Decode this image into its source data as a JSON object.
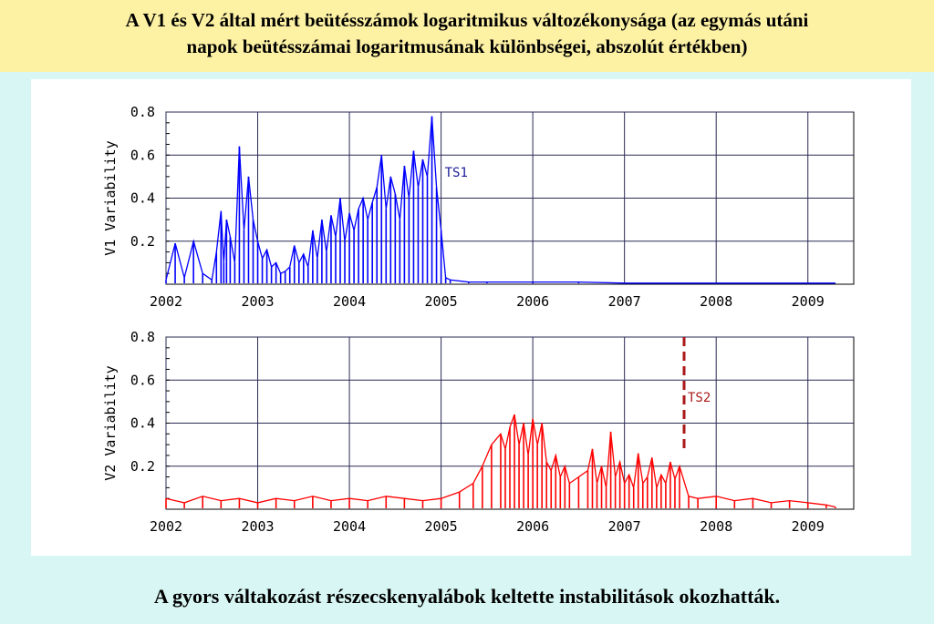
{
  "title": {
    "line1": "A V1 és V2 által mért beütésszámok logaritmikus változékonysága (az egymás utáni",
    "line2": "napok beütésszámai logaritmusának különbségei, abszolút értékben)"
  },
  "caption": "A gyors váltakozást részecskenyalábok keltette instabilitások okozhatták.",
  "colors": {
    "title_bg": "#fdf1a4",
    "page_bg": "#d8f7f4",
    "v1": "#0000ff",
    "v2": "#ff0000",
    "ts1_label": "#1a1a99",
    "ts2_label": "#aa1a1a"
  },
  "chart_data": [
    {
      "type": "line",
      "ylabel": "V1 Variability",
      "xlim": [
        2002,
        2009.5
      ],
      "ylim": [
        0,
        0.8
      ],
      "xticks": [
        "2002",
        "2003",
        "2004",
        "2005",
        "2006",
        "2007",
        "2008",
        "2009"
      ],
      "yticks": [
        "0.2",
        "0.4",
        "0.6",
        "0.8"
      ],
      "grid": true,
      "annotation": {
        "text": "TS1",
        "x": 2005.0,
        "y": 0.52
      },
      "series": [
        {
          "color": "#0000ff",
          "x": [
            2002.0,
            2002.1,
            2002.2,
            2002.3,
            2002.4,
            2002.5,
            2002.55,
            2002.6,
            2002.63,
            2002.66,
            2002.7,
            2002.75,
            2002.8,
            2002.85,
            2002.9,
            2002.95,
            2003.0,
            2003.05,
            2003.1,
            2003.15,
            2003.2,
            2003.25,
            2003.3,
            2003.35,
            2003.4,
            2003.45,
            2003.5,
            2003.55,
            2003.6,
            2003.65,
            2003.7,
            2003.75,
            2003.8,
            2003.85,
            2003.9,
            2003.95,
            2004.0,
            2004.05,
            2004.1,
            2004.15,
            2004.2,
            2004.25,
            2004.3,
            2004.35,
            2004.4,
            2004.45,
            2004.5,
            2004.55,
            2004.6,
            2004.65,
            2004.7,
            2004.75,
            2004.8,
            2004.85,
            2004.9,
            2004.95,
            2005.0,
            2005.05,
            2005.1,
            2005.3,
            2005.5,
            2006.0,
            2006.5,
            2007.0,
            2007.5,
            2008.0,
            2008.5,
            2009.0,
            2009.3
          ],
          "y": [
            0.02,
            0.19,
            0.03,
            0.2,
            0.05,
            0.02,
            0.15,
            0.34,
            0.1,
            0.3,
            0.22,
            0.1,
            0.64,
            0.25,
            0.5,
            0.3,
            0.2,
            0.12,
            0.16,
            0.08,
            0.1,
            0.05,
            0.06,
            0.08,
            0.18,
            0.1,
            0.14,
            0.08,
            0.25,
            0.12,
            0.3,
            0.15,
            0.32,
            0.22,
            0.4,
            0.2,
            0.33,
            0.25,
            0.35,
            0.4,
            0.3,
            0.38,
            0.45,
            0.6,
            0.35,
            0.5,
            0.42,
            0.3,
            0.55,
            0.4,
            0.62,
            0.45,
            0.58,
            0.5,
            0.78,
            0.45,
            0.25,
            0.03,
            0.02,
            0.01,
            0.01,
            0.01,
            0.01,
            0.005,
            0.005,
            0.005,
            0.005,
            0.005,
            0.005
          ]
        }
      ]
    },
    {
      "type": "line",
      "ylabel": "V2 Variability",
      "xlim": [
        2002,
        2009.5
      ],
      "ylim": [
        0,
        0.8
      ],
      "xticks": [
        "2002",
        "2003",
        "2004",
        "2005",
        "2006",
        "2007",
        "2008",
        "2009"
      ],
      "yticks": [
        "0.2",
        "0.4",
        "0.6",
        "0.8"
      ],
      "grid": true,
      "annotation": {
        "text": "TS2",
        "x": 2007.65,
        "y": 0.52
      },
      "vline": {
        "x": 2007.65,
        "y_from": 0.27,
        "y_to": 0.8
      },
      "series": [
        {
          "color": "#ff0000",
          "x": [
            2002.0,
            2002.2,
            2002.4,
            2002.6,
            2002.8,
            2003.0,
            2003.2,
            2003.4,
            2003.6,
            2003.8,
            2004.0,
            2004.2,
            2004.4,
            2004.6,
            2004.8,
            2005.0,
            2005.2,
            2005.35,
            2005.45,
            2005.55,
            2005.65,
            2005.7,
            2005.75,
            2005.8,
            2005.85,
            2005.9,
            2005.95,
            2006.0,
            2006.05,
            2006.1,
            2006.15,
            2006.2,
            2006.25,
            2006.3,
            2006.35,
            2006.4,
            2006.5,
            2006.6,
            2006.65,
            2006.7,
            2006.75,
            2006.8,
            2006.85,
            2006.9,
            2006.95,
            2007.0,
            2007.05,
            2007.1,
            2007.15,
            2007.2,
            2007.25,
            2007.3,
            2007.35,
            2007.4,
            2007.45,
            2007.5,
            2007.55,
            2007.6,
            2007.7,
            2007.8,
            2008.0,
            2008.2,
            2008.4,
            2008.6,
            2008.8,
            2009.0,
            2009.2,
            2009.3
          ],
          "y": [
            0.05,
            0.03,
            0.06,
            0.04,
            0.05,
            0.03,
            0.05,
            0.04,
            0.06,
            0.04,
            0.05,
            0.04,
            0.06,
            0.05,
            0.04,
            0.05,
            0.08,
            0.12,
            0.2,
            0.3,
            0.35,
            0.28,
            0.38,
            0.44,
            0.3,
            0.4,
            0.25,
            0.42,
            0.3,
            0.4,
            0.22,
            0.18,
            0.25,
            0.15,
            0.2,
            0.12,
            0.15,
            0.18,
            0.28,
            0.12,
            0.2,
            0.1,
            0.36,
            0.15,
            0.22,
            0.12,
            0.16,
            0.1,
            0.26,
            0.12,
            0.15,
            0.24,
            0.1,
            0.16,
            0.12,
            0.22,
            0.14,
            0.2,
            0.06,
            0.05,
            0.06,
            0.04,
            0.05,
            0.03,
            0.04,
            0.03,
            0.02,
            0.01
          ]
        }
      ]
    }
  ]
}
